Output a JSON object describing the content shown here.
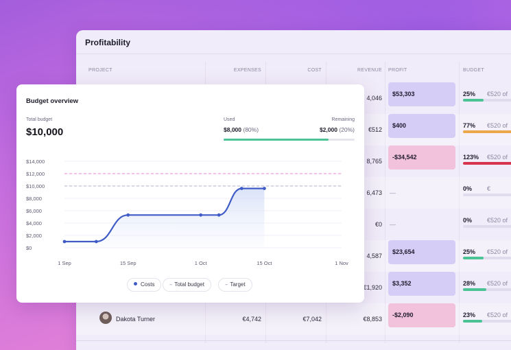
{
  "table": {
    "title": "Profitability",
    "columns": {
      "project": "PROJECT",
      "expenses": "EXPENSES",
      "cost": "COST",
      "revenue": "REVENUE",
      "profit": "PROFIT",
      "budget": "BUDGET"
    },
    "rows": [
      {
        "name": "",
        "expenses": "",
        "cost": "",
        "revenue": "4,046",
        "profit": "$53,303",
        "profit_tone": "purple",
        "pct": "25%",
        "budget": "€520 of",
        "bar_fill": 0.25,
        "bar_color": "#4cc394"
      },
      {
        "name": "",
        "expenses": "",
        "cost": "",
        "revenue": "€512",
        "profit": "$400",
        "profit_tone": "purple",
        "pct": "77%",
        "budget": "€520 of",
        "bar_fill": 0.77,
        "bar_color": "#eaa84a"
      },
      {
        "name": "",
        "expenses": "",
        "cost": "",
        "revenue": "8,765",
        "profit": "-$34,542",
        "profit_tone": "pink",
        "pct": "123%",
        "budget": "€520 of",
        "bar_fill": 1.0,
        "bar_color": "#d8344f"
      },
      {
        "name": "",
        "expenses": "",
        "cost": "",
        "revenue": "6,473",
        "profit": "—",
        "profit_tone": "none",
        "pct": "0%",
        "budget": "€",
        "bar_fill": 0,
        "bar_color": "#4cc394"
      },
      {
        "name": "",
        "expenses": "",
        "cost": "",
        "revenue": "€0",
        "profit": "—",
        "profit_tone": "none",
        "pct": "0%",
        "budget": "€520 of",
        "bar_fill": 0,
        "bar_color": "#4cc394"
      },
      {
        "name": "",
        "expenses": "",
        "cost": "",
        "revenue": "4,587",
        "profit": "$23,654",
        "profit_tone": "purple",
        "pct": "25%",
        "budget": "€520 of",
        "bar_fill": 0.25,
        "bar_color": "#4cc394"
      },
      {
        "name": "",
        "expenses": "",
        "cost": "",
        "revenue": "€1,920",
        "profit": "$3,352",
        "profit_tone": "purple",
        "pct": "28%",
        "budget": "€520 of",
        "bar_fill": 0.28,
        "bar_color": "#4cc394"
      },
      {
        "name": "Dakota Turner",
        "expenses": "€4,742",
        "cost": "€7,042",
        "revenue": "€8,853",
        "profit": "-$2,090",
        "profit_tone": "pink",
        "pct": "23%",
        "budget": "€520 of",
        "bar_fill": 0.23,
        "bar_color": "#4cc394"
      }
    ]
  },
  "card": {
    "title": "Budget overview",
    "total_label": "Total budget",
    "total_value": "$10,000",
    "used_label": "Used",
    "used_value": "$8,000",
    "used_pct": "(80%)",
    "remaining_label": "Remaining",
    "remaining_value": "$2,000",
    "remaining_pct": "(20%)",
    "used_fraction": 0.8,
    "legend": {
      "costs": "Costs",
      "total_budget": "Total budget",
      "target": "Target"
    }
  },
  "chart_data": {
    "type": "line",
    "y_ticks": [
      "$14,000",
      "$12,000",
      "$10,000",
      "$8,000",
      "$6,000",
      "$4,000",
      "$2,000",
      "$0"
    ],
    "x_ticks": [
      "1 Sep",
      "15 Sep",
      "1 Oct",
      "15 Oct",
      "1 Nov"
    ],
    "ylim": [
      0,
      14000
    ],
    "xlim": [
      "1 Sep",
      "1 Nov"
    ],
    "series": [
      {
        "name": "Costs",
        "color": "#3f5bc5",
        "x": [
          "1 Sep",
          "8 Sep",
          "15 Sep",
          "1 Oct",
          "5 Oct",
          "10 Oct",
          "15 Oct"
        ],
        "y": [
          1000,
          1000,
          5300,
          5300,
          5300,
          9600,
          9600
        ]
      }
    ],
    "total_budget": 10000,
    "target": 12000,
    "colors": {
      "target": "#e88ad0",
      "total_budget": "#b3aec4"
    }
  }
}
